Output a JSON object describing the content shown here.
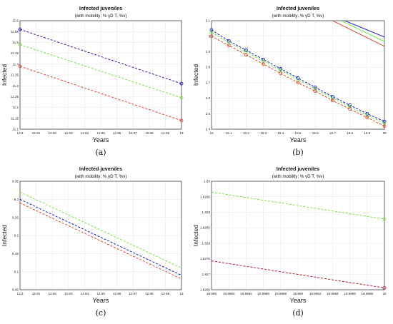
{
  "chart_data": [
    {
      "type": "line",
      "title": "Infected juveniles",
      "subtitle": "(with mobility; % γD T, %v)",
      "ylabel": "Infected",
      "xlabel": "Years",
      "caption": "(a)",
      "xlim": [
        12.9,
        13
      ],
      "ylim": [
        11.1,
        11.6
      ],
      "xticks": [
        "12.9",
        "12.91",
        "12.92",
        "12.93",
        "12.94",
        "12.95",
        "12.96",
        "12.97",
        "12.98",
        "12.99",
        "13"
      ],
      "yticks": [
        "11.1",
        "11.15",
        "11.2",
        "11.25",
        "11.3",
        "11.35",
        "11.4",
        "11.45",
        "11.5",
        "11.55",
        "11.6"
      ],
      "series": [
        {
          "color": "#0000cc",
          "style": "dashed",
          "markers": "circle-ends",
          "x": [
            12.9,
            13
          ],
          "y": [
            11.56,
            11.31
          ]
        },
        {
          "color": "#66e033",
          "style": "dashed",
          "markers": "circle-ends",
          "x": [
            12.9,
            13
          ],
          "y": [
            11.49,
            11.245
          ]
        },
        {
          "color": "#e03319",
          "style": "dashed",
          "markers": "circle-ends",
          "x": [
            12.9,
            13
          ],
          "y": [
            11.39,
            11.14
          ]
        }
      ]
    },
    {
      "type": "line",
      "title": "Infected juveniles",
      "subtitle": "(with mobility; % γD T, %v)",
      "ylabel": "Infected",
      "xlabel": "Years",
      "caption": "(b)",
      "xlim": [
        19,
        20
      ],
      "ylim": [
        2.4,
        3.1
      ],
      "xticks": [
        "19",
        "19.1",
        "19.2",
        "19.3",
        "19.4",
        "19.5",
        "19.6",
        "19.7",
        "19.8",
        "19.9",
        "20"
      ],
      "yticks": [
        "2.4",
        "2.5",
        "2.6",
        "2.7",
        "2.8",
        "2.9",
        "3",
        "3.1"
      ],
      "series": [
        {
          "color": "#0000cc",
          "style": "dashed",
          "markers": "circle",
          "x": [
            19,
            19.1,
            19.2,
            19.3,
            19.4,
            19.5,
            19.6,
            19.7,
            19.8,
            19.9,
            20
          ],
          "y": [
            3.04,
            2.97,
            2.91,
            2.85,
            2.79,
            2.73,
            2.67,
            2.61,
            2.555,
            2.5,
            2.45
          ]
        },
        {
          "color": "#66e033",
          "style": "dashed",
          "markers": "circle",
          "x": [
            19,
            19.1,
            19.2,
            19.3,
            19.4,
            19.5,
            19.6,
            19.7,
            19.8,
            19.9,
            20
          ],
          "y": [
            3.025,
            2.96,
            2.9,
            2.84,
            2.78,
            2.72,
            2.66,
            2.6,
            2.545,
            2.49,
            2.44
          ]
        },
        {
          "color": "#e03319",
          "style": "dashed",
          "markers": "circle",
          "x": [
            19,
            19.1,
            19.2,
            19.3,
            19.4,
            19.5,
            19.6,
            19.7,
            19.8,
            19.9,
            20
          ],
          "y": [
            3.0,
            2.94,
            2.88,
            2.82,
            2.76,
            2.7,
            2.645,
            2.585,
            2.53,
            2.475,
            2.42
          ]
        },
        {
          "color": "#0000cc",
          "style": "solid",
          "markers": "none",
          "x": [
            19.77,
            20
          ],
          "y": [
            3.1,
            2.995
          ]
        },
        {
          "color": "#66e033",
          "style": "solid",
          "markers": "none",
          "x": [
            19.75,
            20
          ],
          "y": [
            3.1,
            2.965
          ]
        },
        {
          "color": "#e03319",
          "style": "solid",
          "markers": "none",
          "x": [
            19.7,
            20
          ],
          "y": [
            3.1,
            2.935
          ]
        }
      ]
    },
    {
      "type": "line",
      "title": "Infected juveniles",
      "subtitle": "(with mobility; % γD T, %v)",
      "ylabel": "Infected",
      "xlabel": "Years",
      "caption": "(c)",
      "xlim": [
        12.9,
        13
      ],
      "ylim": [
        9.05,
        9.35
      ],
      "xticks": [
        "12.9",
        "12.91",
        "12.92",
        "12.93",
        "12.94",
        "12.95",
        "12.96",
        "12.97",
        "12.98",
        "12.99",
        "13"
      ],
      "yticks": [
        "9.05",
        "9.1",
        "9.15",
        "9.2",
        "9.25",
        "9.3",
        "9.35"
      ],
      "series": [
        {
          "color": "#66e033",
          "style": "dashed",
          "markers": "none",
          "x": [
            12.9,
            13
          ],
          "y": [
            9.32,
            9.11
          ]
        },
        {
          "color": "#0000cc",
          "style": "dashed",
          "markers": "none",
          "x": [
            12.9,
            13
          ],
          "y": [
            9.3,
            9.09
          ]
        },
        {
          "color": "#e03319",
          "style": "dashed",
          "markers": "none",
          "x": [
            12.9,
            13
          ],
          "y": [
            9.29,
            9.08
          ]
        }
      ]
    },
    {
      "type": "line",
      "title": "Infected juveniles",
      "subtitle": "(with mobility; % γD T, %v)",
      "ylabel": "Infected",
      "xlabel": "Years",
      "caption": "(d)",
      "xlim": [
        19.998,
        20
      ],
      "ylim": [
        1.8265,
        1.83
      ],
      "xticks": [
        "19.998",
        "19.9982",
        "19.9984",
        "19.9986",
        "19.9988",
        "19.999",
        "19.9992",
        "19.9994",
        "19.9996",
        "19.9998",
        "20"
      ],
      "yticks": [
        "1.8265",
        "1.827",
        "1.8275",
        "1.828",
        "1.8285",
        "1.829",
        "1.8295",
        "1.83"
      ],
      "series": [
        {
          "color": "#66e033",
          "style": "dashed",
          "markers": "circle-end",
          "x": [
            19.998,
            20
          ],
          "y": [
            1.82965,
            1.82878
          ]
        },
        {
          "color": "#0000cc",
          "style": "dashed",
          "markers": "circle-end",
          "x": [
            19.998,
            20
          ],
          "y": [
            1.82743,
            1.82656
          ]
        },
        {
          "color": "#e03319",
          "style": "dashed",
          "markers": "circle-end",
          "x": [
            19.998,
            20
          ],
          "y": [
            1.82743,
            1.82656
          ]
        }
      ]
    }
  ]
}
